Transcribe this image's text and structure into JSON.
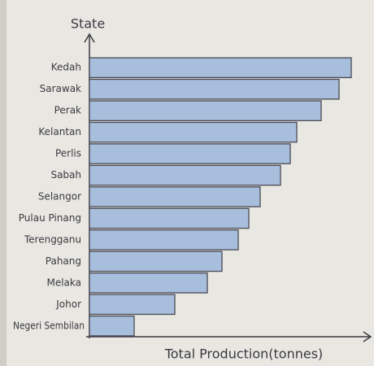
{
  "chart_data": {
    "type": "bar",
    "orientation": "horizontal",
    "y_axis_label": "State",
    "x_axis_label": "Total Production(tonnes)",
    "categories": [
      "Kedah",
      "Sarawak",
      "Perak",
      "Kelantan",
      "Perlis",
      "Sabah",
      "Selangor",
      "Pulau Pinang",
      "Terengganu",
      "Pahang",
      "Melaka",
      "Johor",
      "Negeri Sembilan"
    ],
    "values": [
      322,
      307,
      285,
      255,
      247,
      235,
      210,
      196,
      183,
      163,
      145,
      105,
      55
    ],
    "color": "#a8bedd",
    "xlim": [
      0,
      345
    ]
  }
}
